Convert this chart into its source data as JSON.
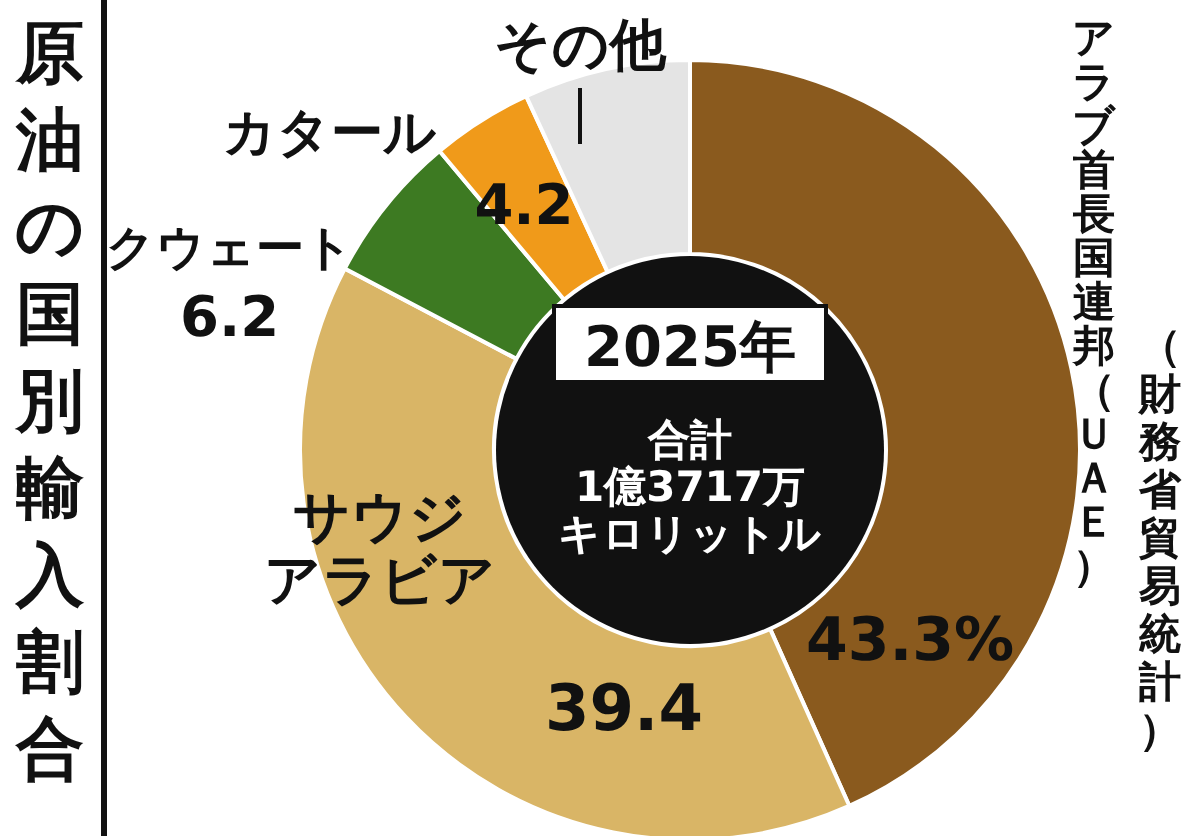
{
  "chart_data": {
    "type": "donut",
    "title": "原油の国別輸入割合",
    "subtitle": "2025年",
    "annotations": [
      "合計1億3717万キロリットル",
      "（財務省貿易統計）"
    ],
    "categories": [
      "アラブ首長国連邦（ＵＡＥ）",
      "サウジアラビア",
      "クウェート",
      "カタール",
      "その他"
    ],
    "values": [
      43.3,
      39.4,
      6.2,
      4.2,
      6.9
    ],
    "colors": [
      "#8a5a1e",
      "#d9b566",
      "#3d7a22",
      "#f09a1a",
      "#e4e4e4"
    ],
    "value_labels": [
      "43.3%",
      "39.4",
      "6.2",
      "4.2",
      null
    ]
  }
}
